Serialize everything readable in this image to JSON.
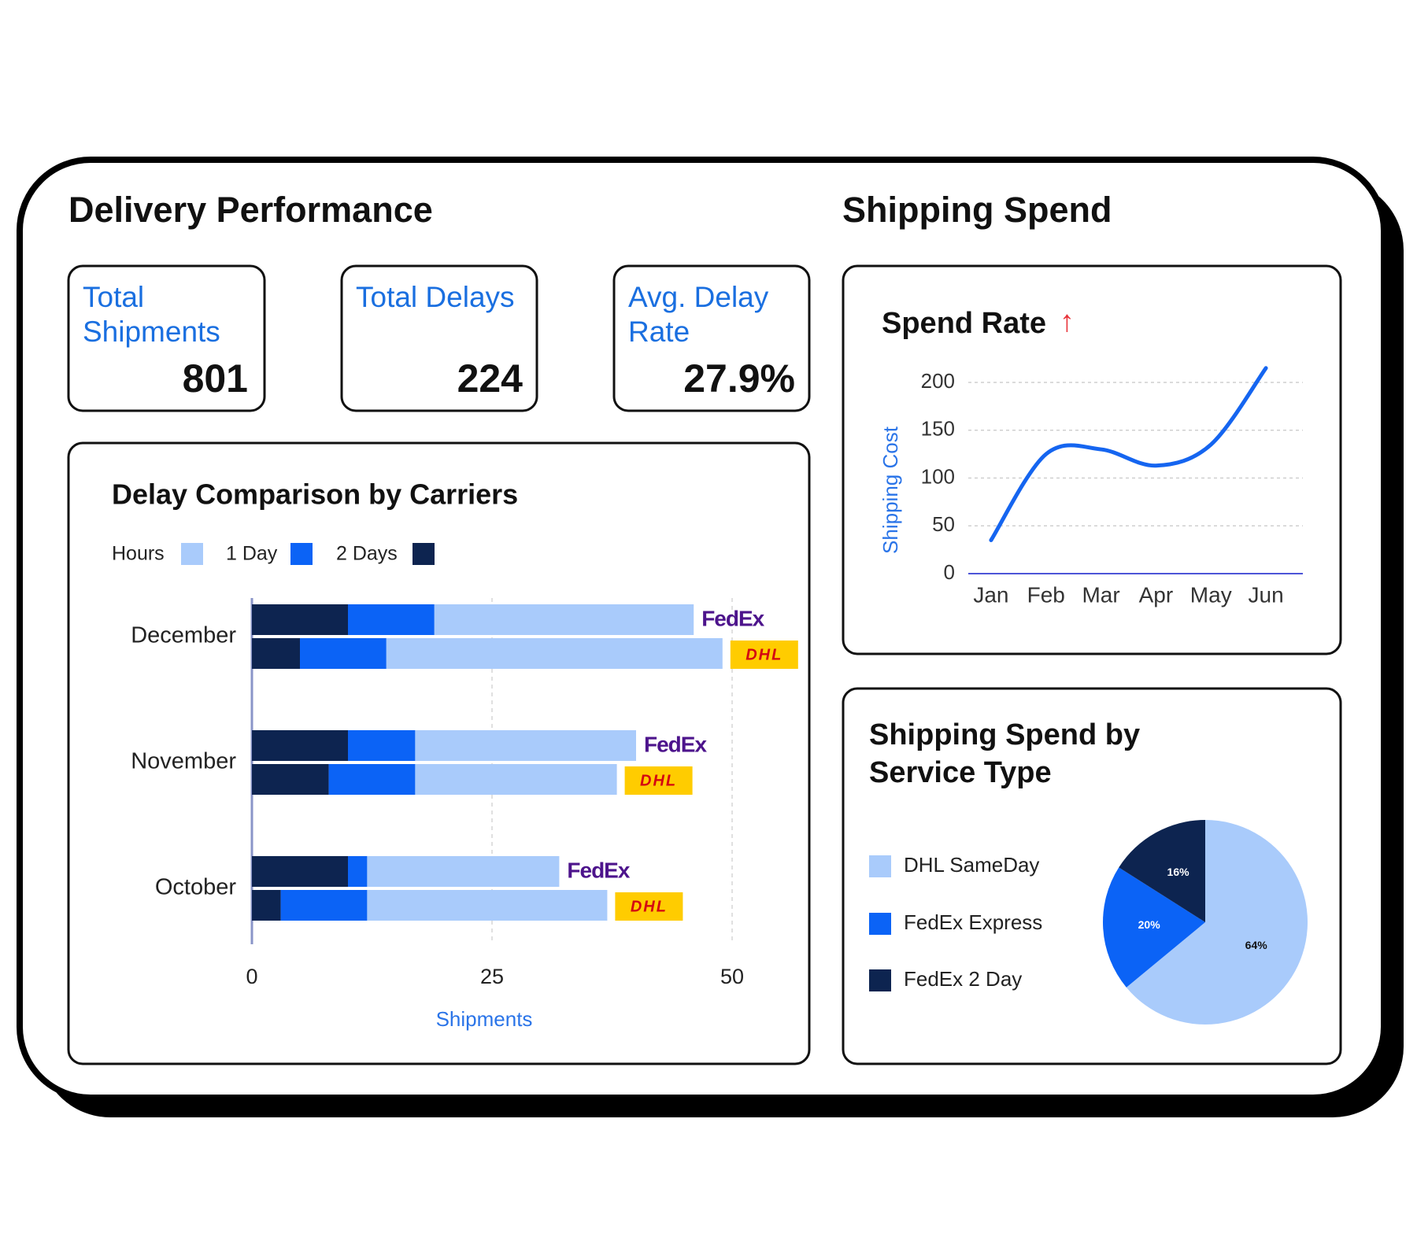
{
  "header": {
    "delivery_title": "Delivery Performance",
    "spend_title": "Shipping Spend"
  },
  "kpis": [
    {
      "label": "Total Shipments",
      "value": "801"
    },
    {
      "label": "Total Delays",
      "value": "224"
    },
    {
      "label": "Avg. Delay Rate",
      "value": "27.9%"
    }
  ],
  "chart_data": [
    {
      "type": "bar",
      "orientation": "horizontal",
      "stacked": true,
      "title": "Delay Comparison by Carriers",
      "x_label": "Shipments",
      "categories": [
        "December",
        "November",
        "October"
      ],
      "carriers": [
        "FedEx",
        "DHL"
      ],
      "series": [
        {
          "name": "Hours",
          "color": "#a9cbfb",
          "values": [
            [
              27,
              35
            ],
            [
              23,
              21
            ],
            [
              20,
              25
            ]
          ]
        },
        {
          "name": "1 Day",
          "color": "#0b63f6",
          "values": [
            [
              9,
              9
            ],
            [
              7,
              9
            ],
            [
              2,
              9
            ]
          ]
        },
        {
          "name": "2 Days",
          "color": "#0d2450",
          "values": [
            [
              10,
              5
            ],
            [
              10,
              8
            ],
            [
              10,
              3
            ]
          ]
        }
      ],
      "xlim": [
        0,
        50
      ],
      "xticks": [
        0,
        25,
        50
      ],
      "grid": true
    },
    {
      "type": "line",
      "title": "Spend Rate",
      "trend_icon": "↑",
      "y_label": "Shipping Cost",
      "categories": [
        "Jan",
        "Feb",
        "Mar",
        "Apr",
        "May",
        "Jun"
      ],
      "values": [
        35,
        125,
        130,
        113,
        135,
        215
      ],
      "color": "#1565f0",
      "ylim": [
        0,
        220
      ],
      "yticks": [
        0,
        50,
        100,
        150,
        200
      ],
      "grid": true
    },
    {
      "type": "pie",
      "title": "Shipping Spend by Service Type",
      "categories": [
        "DHL SameDay",
        "FedEx Express",
        "FedEx 2 Day"
      ],
      "values": [
        64,
        20,
        16
      ],
      "value_labels": [
        "64%",
        "20%",
        "16%"
      ],
      "colors": [
        "#a9cbfb",
        "#0b63f6",
        "#0d2450"
      ]
    }
  ]
}
